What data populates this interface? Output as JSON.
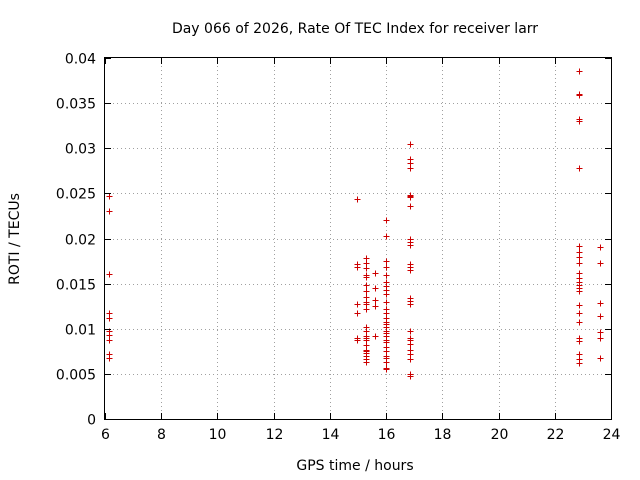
{
  "chart_data": {
    "type": "scatter",
    "title": "Day 066 of 2026, Rate Of TEC Index for receiver larr",
    "xlabel": "GPS time / hours",
    "ylabel": "ROTI / TECUs",
    "xlim": [
      6,
      24
    ],
    "ylim": [
      0,
      0.04
    ],
    "xticks": [
      6,
      8,
      10,
      12,
      14,
      16,
      18,
      20,
      22,
      24
    ],
    "yticks": [
      0,
      0.005,
      0.01,
      0.015,
      0.02,
      0.025,
      0.03,
      0.035,
      0.04
    ],
    "xtick_labels": [
      "6",
      "8",
      "10",
      "12",
      "14",
      "16",
      "18",
      "20",
      "22",
      "24"
    ],
    "ytick_labels": [
      "0",
      "0.005",
      "0.01",
      "0.015",
      "0.02",
      "0.025",
      "0.03",
      "0.035",
      "0.04"
    ],
    "grid": true,
    "marker": "+",
    "color": "#cc0000",
    "series": [
      {
        "x": [
          6.15,
          6.15,
          6.15,
          6.15,
          6.15,
          6.15,
          6.15,
          6.15,
          6.15,
          6.15,
          14.95,
          14.95,
          14.95,
          14.95,
          14.95,
          14.95,
          14.95,
          15.3,
          15.3,
          15.3,
          15.3,
          15.3,
          15.3,
          15.3,
          15.3,
          15.3,
          15.3,
          15.3,
          15.3,
          15.3,
          15.3,
          15.3,
          15.3,
          15.3,
          15.3,
          15.3,
          15.3,
          15.3,
          15.3,
          15.3,
          15.6,
          15.6,
          15.6,
          15.6,
          15.6,
          16.0,
          16.0,
          16.0,
          16.0,
          16.0,
          16.0,
          16.0,
          16.0,
          16.0,
          16.0,
          16.0,
          16.0,
          16.0,
          16.0,
          16.0,
          16.0,
          16.0,
          16.0,
          16.0,
          16.0,
          16.0,
          16.0,
          16.0,
          16.0,
          16.0,
          16.0,
          16.0,
          16.0,
          16.85,
          16.85,
          16.85,
          16.85,
          16.85,
          16.85,
          16.85,
          16.85,
          16.85,
          16.85,
          16.85,
          16.85,
          16.85,
          16.85,
          16.85,
          16.85,
          16.85,
          16.85,
          16.85,
          16.85,
          16.85,
          16.85,
          16.85,
          16.85,
          16.85,
          16.85,
          22.85,
          22.85,
          22.85,
          22.85,
          22.85,
          22.85,
          22.85,
          22.85,
          22.85,
          22.85,
          22.85,
          22.85,
          22.85,
          22.85,
          22.85,
          22.85,
          22.85,
          22.85,
          22.85,
          22.85,
          22.85,
          22.85,
          22.85,
          22.85,
          23.6,
          23.6,
          23.6,
          23.6,
          23.6,
          23.6,
          23.6
        ],
        "y": [
          0.0247,
          0.0231,
          0.0161,
          0.0118,
          0.0112,
          0.0097,
          0.0093,
          0.0088,
          0.0072,
          0.0068,
          0.0244,
          0.0172,
          0.0168,
          0.0127,
          0.0117,
          0.009,
          0.0088,
          0.0178,
          0.0173,
          0.0167,
          0.016,
          0.0157,
          0.0148,
          0.0142,
          0.0135,
          0.013,
          0.0127,
          0.0122,
          0.0102,
          0.0098,
          0.0092,
          0.009,
          0.0088,
          0.0082,
          0.0077,
          0.0075,
          0.0073,
          0.007,
          0.0066,
          0.0063,
          0.0162,
          0.0145,
          0.0132,
          0.0125,
          0.0092,
          0.0221,
          0.0203,
          0.0175,
          0.0168,
          0.016,
          0.0152,
          0.0147,
          0.0143,
          0.0138,
          0.013,
          0.0122,
          0.0118,
          0.0112,
          0.0108,
          0.0105,
          0.0102,
          0.0098,
          0.0095,
          0.0092,
          0.0088,
          0.0085,
          0.008,
          0.0075,
          0.007,
          0.0068,
          0.0063,
          0.0057,
          0.0055,
          0.0305,
          0.0288,
          0.0284,
          0.0278,
          0.0248,
          0.0247,
          0.0246,
          0.0236,
          0.0199,
          0.0196,
          0.0193,
          0.0172,
          0.0168,
          0.0165,
          0.0134,
          0.0131,
          0.0127,
          0.0098,
          0.009,
          0.0087,
          0.0083,
          0.0077,
          0.0072,
          0.0067,
          0.005,
          0.0048,
          0.0386,
          0.036,
          0.0359,
          0.0332,
          0.033,
          0.0278,
          0.0192,
          0.0185,
          0.0179,
          0.0173,
          0.0162,
          0.0156,
          0.0152,
          0.0148,
          0.0145,
          0.0142,
          0.0126,
          0.0118,
          0.0108,
          0.009,
          0.0086,
          0.0072,
          0.0066,
          0.0062,
          0.0191,
          0.0173,
          0.0129,
          0.0114,
          0.0096,
          0.009,
          0.0068
        ]
      }
    ]
  }
}
